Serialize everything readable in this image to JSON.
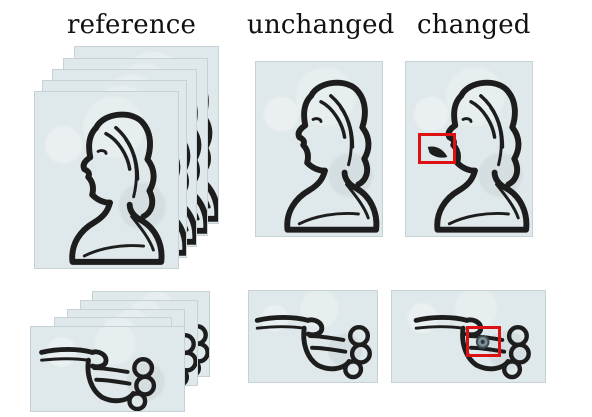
{
  "labels": {
    "reference": "reference",
    "unchanged": "unchanged",
    "changed": "changed"
  },
  "rows": [
    {
      "subject": "portrait-bust",
      "reference_copies": 5,
      "highlighted_change": "dark mark near the cheek in the changed copy"
    },
    {
      "subject": "pointing-hand",
      "reference_copies": 5,
      "highlighted_change": "small round spot on the hand in the changed copy"
    }
  ],
  "colors": {
    "panel_bg": "#dfe8ea",
    "ink": "#1d1d1d",
    "highlight": "#d11111"
  }
}
